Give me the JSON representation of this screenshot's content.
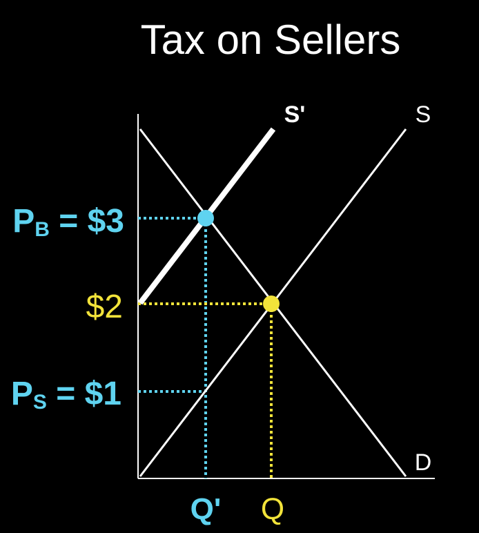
{
  "title": "Tax on Sellers",
  "colors": {
    "background": "#000000",
    "foreground": "#ffffff",
    "buyer_price": "#5fd3f0",
    "equilibrium": "#f2e33a"
  },
  "labels": {
    "supply_shifted": "S'",
    "supply": "S",
    "demand": "D",
    "buyer_price_prefix": "P",
    "buyer_price_sub": "B",
    "buyer_price_value": " = $3",
    "eq_price": "$2",
    "seller_price_prefix": "P",
    "seller_price_sub": "S",
    "seller_price_value": " = $1",
    "q_tax": "Q'",
    "q_eq": "Q"
  }
}
